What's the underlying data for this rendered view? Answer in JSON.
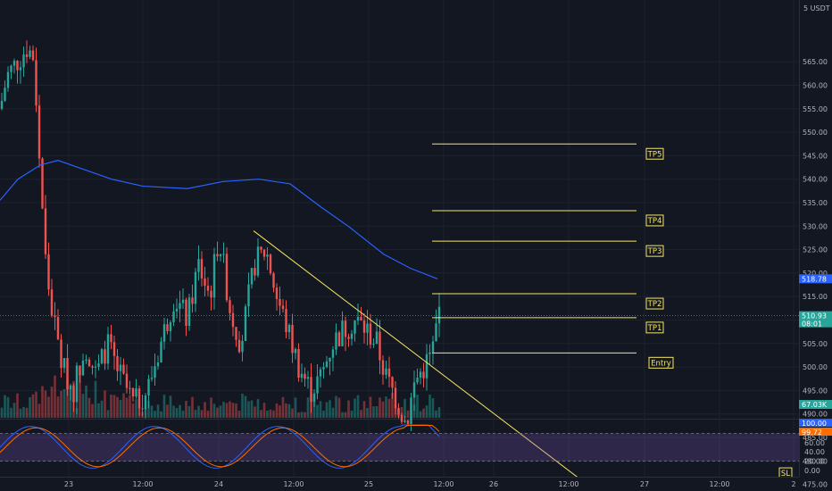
{
  "chart_data": {
    "type": "candlestick",
    "price_axis": {
      "unit_label": "5 USDT",
      "ticks": [
        565,
        560,
        555,
        550,
        545,
        540,
        535,
        530,
        525,
        520,
        515,
        510,
        505,
        500,
        495,
        490,
        485,
        480,
        475
      ],
      "tick_labels": [
        "565.00",
        "560.00",
        "555.00",
        "550.00",
        "545.00",
        "540.00",
        "535.00",
        "530.00",
        "525.00",
        "520.00",
        "515.00",
        "510.00",
        "505.00",
        "500.00",
        "495.00",
        "490.00",
        "485.00",
        "480.00",
        "475.00"
      ]
    },
    "indicator_axis": {
      "ticks": [
        60,
        40,
        20,
        0
      ],
      "tick_labels": [
        "60.00",
        "40.00",
        "20.00",
        "0.00"
      ]
    },
    "time_axis": {
      "labels": [
        "23",
        "12:00",
        "24",
        "12:00",
        "25",
        "12:00",
        "26",
        "12:00",
        "27",
        "12:00",
        "2"
      ]
    },
    "last_price": {
      "value": "510.93",
      "countdown": "08:01",
      "color": "#26a69a"
    },
    "ma_value": {
      "value": "518.78",
      "color": "#2962ff"
    },
    "volume_tag": {
      "value": "67.03K",
      "color": "#26a69a"
    },
    "stoch_tags": [
      {
        "value": "100.00",
        "color": "#2962ff"
      },
      {
        "value": "99.72",
        "color": "#ff6d00"
      }
    ],
    "levels": [
      {
        "label": "TP5",
        "price": 547.5
      },
      {
        "label": "TP4",
        "price": 533.3
      },
      {
        "label": "TP3",
        "price": 526.8
      },
      {
        "label": "TP2",
        "price": 515.6
      },
      {
        "label": "TP1",
        "price": 510.5
      },
      {
        "label": "Entry",
        "price": 503.0
      },
      {
        "label": "SL",
        "price": 473.2
      }
    ],
    "trendline": {
      "from": {
        "x": "24 06:00",
        "y": 529.0
      },
      "to": {
        "x": "26 09:00",
        "y": 473.2
      }
    },
    "colors": {
      "up": "#26a69a",
      "down": "#ef5350",
      "ma": "#2962ff",
      "levels": "#f5e663",
      "stoch_band": "#7e57c2"
    }
  }
}
